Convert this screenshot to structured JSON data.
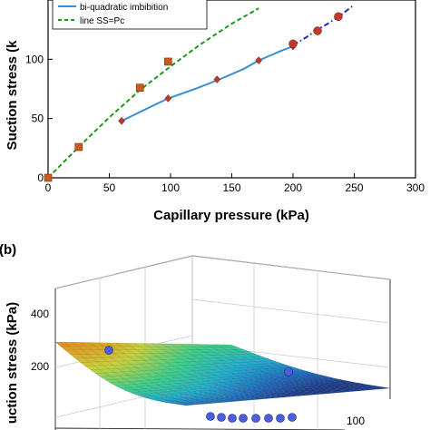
{
  "chart_data": [
    {
      "panel": "",
      "type": "line",
      "xlabel": "Capillary pressure (kPa)",
      "ylabel": "Suction stress (k",
      "xlim": [
        0,
        300
      ],
      "ylim": [
        0,
        150
      ],
      "xticks": [
        "0",
        "50",
        "100",
        "150",
        "200",
        "250",
        "300"
      ],
      "yticks": [
        "0",
        "50",
        "100"
      ],
      "grid": false,
      "legend_placement": "top-left",
      "series": [
        {
          "name": "line SS=Pc",
          "style": "dashed",
          "color": "#1a9a1a",
          "x": [
            0,
            25,
            50,
            75,
            100,
            125,
            150,
            172
          ],
          "y": [
            0,
            26,
            51,
            74,
            94,
            113,
            130,
            143
          ]
        },
        {
          "name": "bi-quadratic imbibition",
          "style": "solid",
          "color": "#3a8fd0",
          "x": [
            60,
            80,
            98,
            120,
            140,
            160,
            172,
            190,
            200
          ],
          "y": [
            48,
            58,
            67,
            75,
            83,
            92,
            99,
            107,
            111
          ]
        },
        {
          "name": "",
          "style": "dashdot",
          "color": "#1a2fc0",
          "x": [
            200,
            210,
            220,
            230,
            240,
            250
          ],
          "y": [
            112,
            118,
            125,
            131,
            138,
            146
          ]
        }
      ],
      "markers": [
        {
          "shape": "square",
          "color": "#c85a1e",
          "x": [
            0,
            25,
            75,
            98
          ],
          "y": [
            0,
            26,
            76,
            98
          ]
        },
        {
          "shape": "diamond",
          "color": "#c0392b",
          "x": [
            60,
            98,
            138,
            172,
            200
          ],
          "y": [
            48,
            67,
            83,
            99,
            111
          ]
        },
        {
          "shape": "circle",
          "color": "#c0392b",
          "x": [
            200,
            220,
            237
          ],
          "y": [
            113,
            124,
            136
          ]
        }
      ]
    },
    {
      "panel": "(b)",
      "type": "surface",
      "ylabel": "uction stress (kPa)",
      "zticks": [
        "200",
        "400"
      ],
      "xticks_partial": [
        "100"
      ],
      "colormap": [
        "#1d3d8f",
        "#1f6fc5",
        "#22b0d0",
        "#3ed08a",
        "#c8d13a",
        "#e68a1f"
      ]
    }
  ]
}
